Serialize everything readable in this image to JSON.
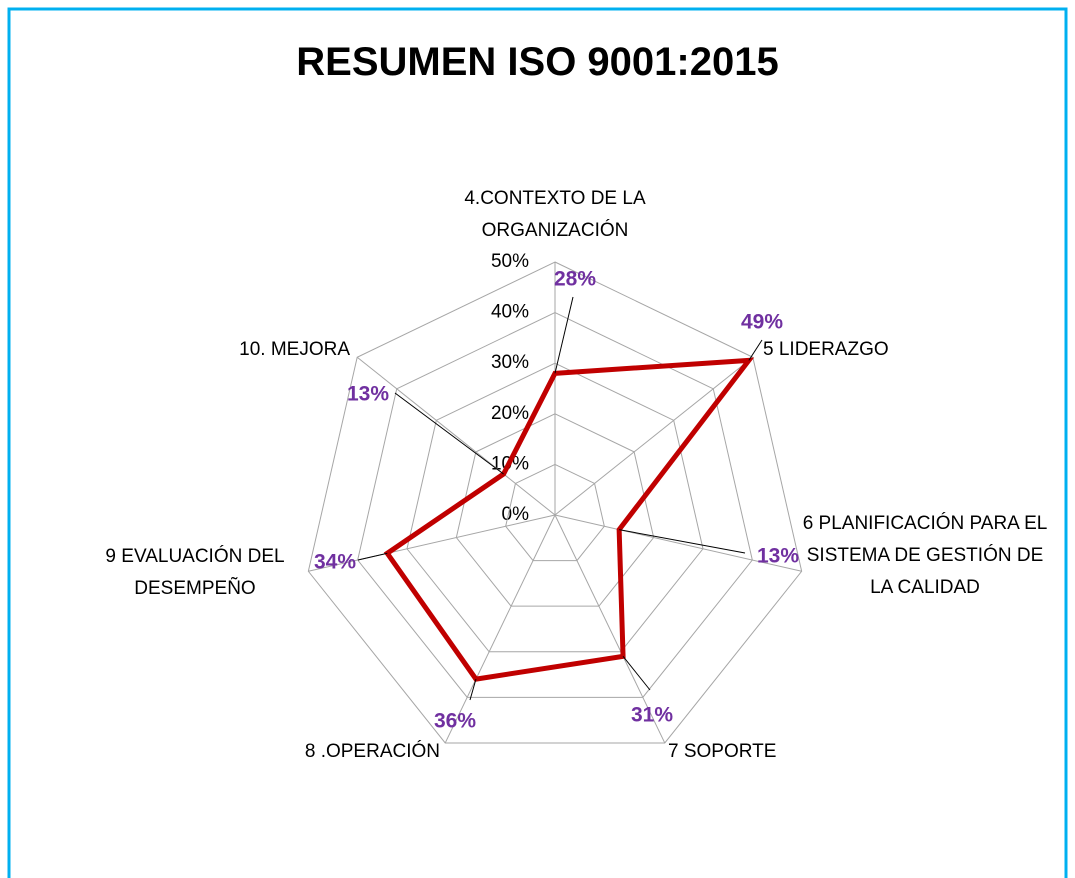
{
  "chart_data": {
    "type": "radar",
    "title": "RESUMEN ISO 9001:2015",
    "categories": [
      "4.CONTEXTO DE LA ORGANIZACIÓN",
      "5 LIDERAZGO",
      "6 PLANIFICACIÓN PARA EL SISTEMA DE GESTIÓN DE LA CALIDAD",
      "7 SOPORTE",
      "8 .OPERACIÓN",
      "9 EVALUACIÓN DEL DESEMPEÑO",
      "10. MEJORA"
    ],
    "values": [
      28,
      49,
      13,
      31,
      36,
      34,
      13
    ],
    "value_labels": [
      "28%",
      "49%",
      "13%",
      "31%",
      "36%",
      "34%",
      "13%"
    ],
    "color": "#c00000",
    "label_color": "#7030a0",
    "grid": true,
    "ylim": [
      0,
      50
    ],
    "yticks": [
      {
        "value": 0,
        "label": "0%"
      },
      {
        "value": 10,
        "label": "10%"
      },
      {
        "value": 20,
        "label": "20%"
      },
      {
        "value": 30,
        "label": "30%"
      },
      {
        "value": 40,
        "label": "40%"
      },
      {
        "value": 50,
        "label": "50%"
      }
    ]
  }
}
